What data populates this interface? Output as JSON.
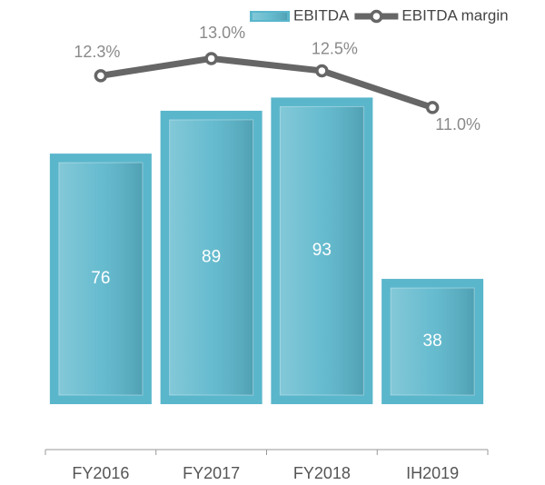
{
  "chart_data": {
    "type": "bar_line",
    "categories": [
      "FY2016",
      "FY2017",
      "FY2018",
      "IH2019"
    ],
    "series": [
      {
        "name": "EBITDA",
        "type": "bar",
        "color": "#5ab6cb",
        "values": [
          76,
          89,
          93,
          38
        ]
      },
      {
        "name": "EBITDA margin",
        "type": "line",
        "axis": "y2",
        "color": "#666666",
        "values": [
          12.3,
          13.0,
          12.5,
          11.0
        ],
        "value_labels": [
          "12.3%",
          "13.0%",
          "12.5%",
          "11.0%"
        ]
      }
    ],
    "ylim": [
      0,
      100
    ],
    "y2lim": [
      -1.1,
      12.35
    ]
  }
}
